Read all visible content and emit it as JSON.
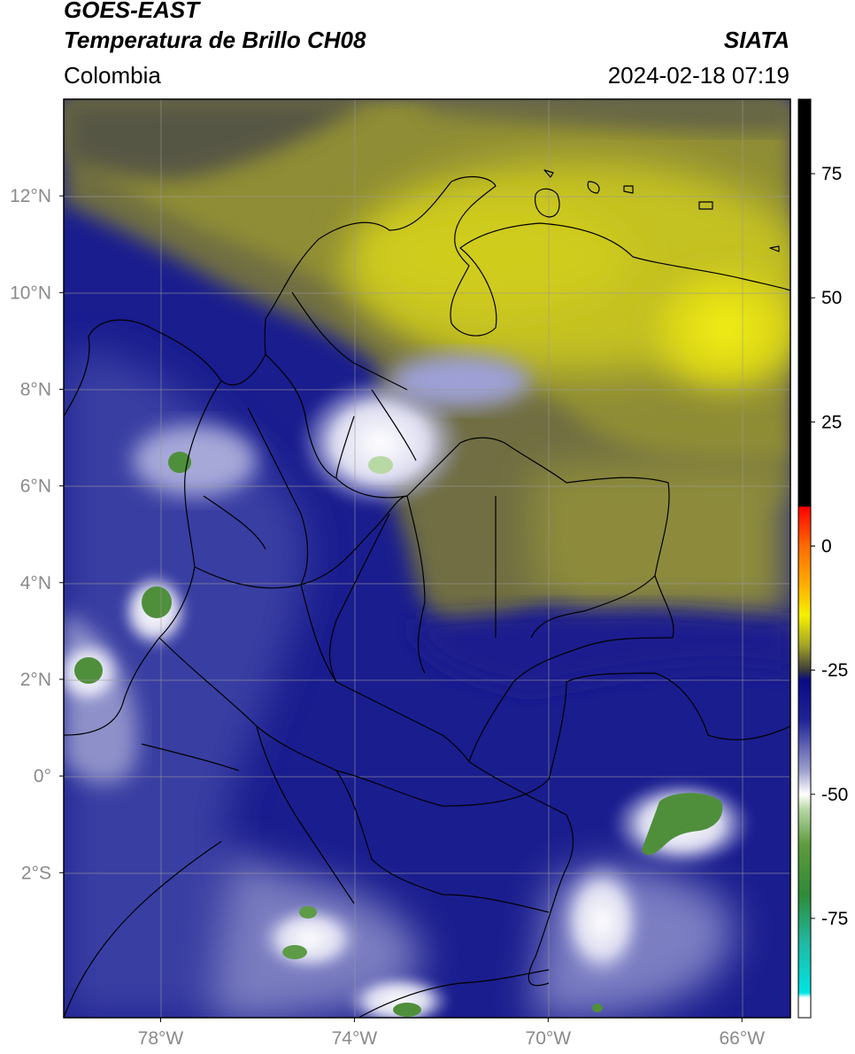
{
  "header": {
    "satellite": "GOES-EAST",
    "product": "Temperatura de Brillo CH08",
    "region": "Colombia",
    "agency": "SIATA",
    "datetime": "2024-02-18 07:19"
  },
  "map": {
    "lon_range": [
      -80,
      -65
    ],
    "lat_range": [
      -5,
      14
    ],
    "lon_ticks": [
      {
        "value": -78,
        "label": "78°W"
      },
      {
        "value": -74,
        "label": "74°W"
      },
      {
        "value": -70,
        "label": "70°W"
      },
      {
        "value": -66,
        "label": "66°W"
      }
    ],
    "lat_ticks": [
      {
        "value": 12,
        "label": "12°N"
      },
      {
        "value": 10,
        "label": "10°N"
      },
      {
        "value": 8,
        "label": "8°N"
      },
      {
        "value": 6,
        "label": "6°N"
      },
      {
        "value": 4,
        "label": "4°N"
      },
      {
        "value": 2,
        "label": "2°N"
      },
      {
        "value": 0,
        "label": "0°"
      },
      {
        "value": -2,
        "label": "2°S"
      }
    ],
    "grid": true
  },
  "colorbar": {
    "range": [
      -95,
      90
    ],
    "ticks": [
      {
        "value": 75,
        "label": "75"
      },
      {
        "value": 50,
        "label": "50"
      },
      {
        "value": 25,
        "label": "25"
      },
      {
        "value": 0,
        "label": "0"
      },
      {
        "value": -25,
        "label": "-25"
      },
      {
        "value": -50,
        "label": "-50"
      },
      {
        "value": -75,
        "label": "-75"
      }
    ],
    "stops": [
      {
        "value": 90,
        "color": "#000000"
      },
      {
        "value": 8,
        "color": "#000000"
      },
      {
        "value": 7.9,
        "color": "#ff0000"
      },
      {
        "value": 0,
        "color": "#ff6a00"
      },
      {
        "value": -8,
        "color": "#ffb000"
      },
      {
        "value": -14,
        "color": "#f4f000"
      },
      {
        "value": -20,
        "color": "#a3a326"
      },
      {
        "value": -25,
        "color": "#3c3c3c"
      },
      {
        "value": -27,
        "color": "#0a0a85"
      },
      {
        "value": -35,
        "color": "#1e2396"
      },
      {
        "value": -45,
        "color": "#9a9ccc"
      },
      {
        "value": -50,
        "color": "#ffffff"
      },
      {
        "value": -53,
        "color": "#b7d7a5"
      },
      {
        "value": -60,
        "color": "#5f9c3f"
      },
      {
        "value": -70,
        "color": "#2f8a35"
      },
      {
        "value": -80,
        "color": "#1fb9a3"
      },
      {
        "value": -90,
        "color": "#00e4e4"
      },
      {
        "value": -91,
        "color": "#ffffff"
      },
      {
        "value": -95,
        "color": "#ffffff"
      }
    ]
  }
}
